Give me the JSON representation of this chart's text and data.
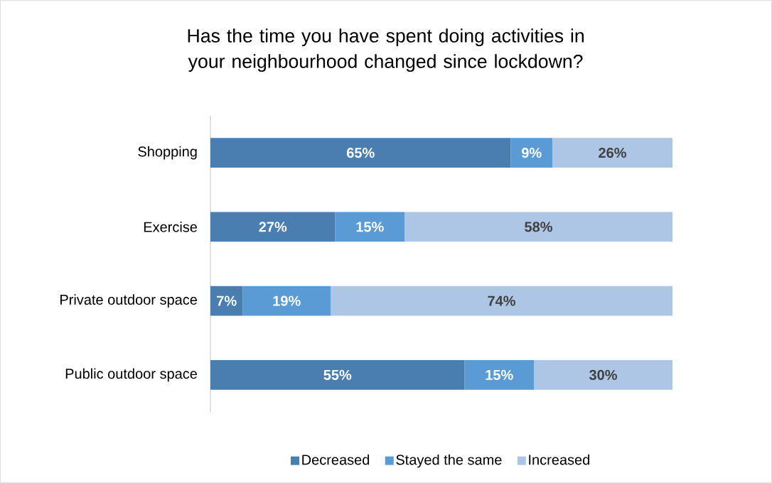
{
  "chart_data": {
    "type": "bar",
    "orientation": "horizontal",
    "stacked": true,
    "title": "Has the time you have spent doing activities in your neighbourhood changed since lockdown?",
    "categories": [
      "Shopping",
      "Exercise",
      "Private outdoor space",
      "Public outdoor space"
    ],
    "series": [
      {
        "name": "Decreased",
        "color": "#4a7eb0",
        "values": [
          65,
          27,
          7,
          55
        ],
        "value_labels": [
          "65%",
          "27%",
          "7%",
          "55%"
        ]
      },
      {
        "name": "Stayed the same",
        "color": "#5b9bd5",
        "values": [
          9,
          15,
          19,
          15
        ],
        "value_labels": [
          "9%",
          "15%",
          "19%",
          "15%"
        ]
      },
      {
        "name": "Increased",
        "color": "#adc6e5",
        "values": [
          26,
          58,
          74,
          30
        ],
        "value_labels": [
          "26%",
          "58%",
          "74%",
          "30%"
        ]
      }
    ],
    "legend": "bottom"
  }
}
